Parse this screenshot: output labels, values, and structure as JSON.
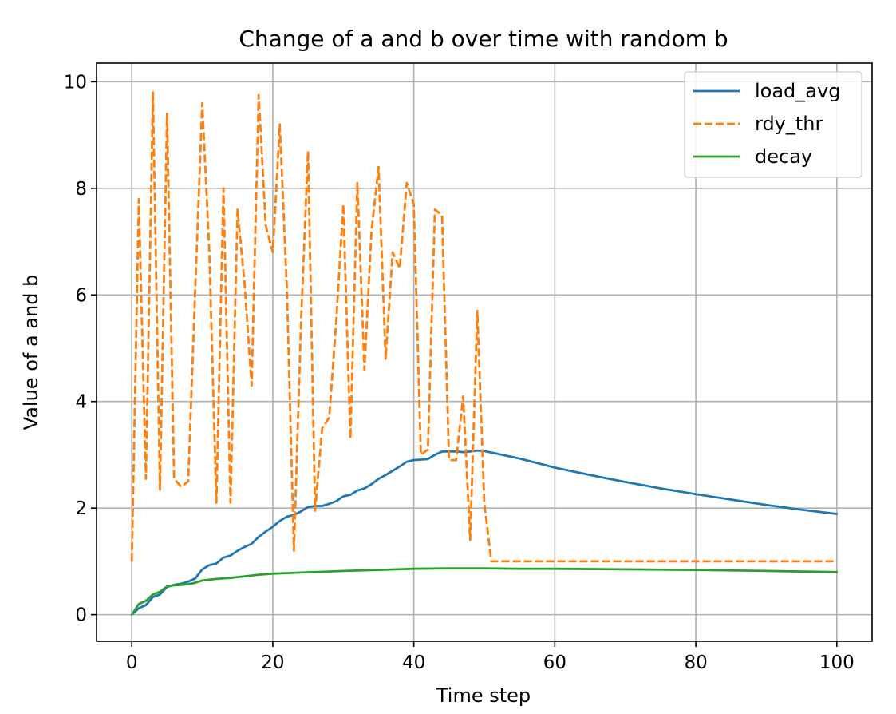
{
  "chart_data": {
    "type": "line",
    "title": "Change of a and b over time with random b",
    "xlabel": "Time step",
    "ylabel": "Value of a and b",
    "xlim": [
      -5,
      105
    ],
    "ylim": [
      -0.5,
      10.35
    ],
    "xticks": [
      0,
      20,
      40,
      60,
      80,
      100
    ],
    "yticks": [
      0,
      2,
      4,
      6,
      8,
      10
    ],
    "grid": true,
    "legend_position": "top-right",
    "series": [
      {
        "name": "load_avg",
        "color": "#1f77b4",
        "style": "solid",
        "x": [
          0,
          1,
          2,
          3,
          4,
          5,
          6,
          7,
          8,
          9,
          10,
          11,
          12,
          13,
          14,
          15,
          16,
          17,
          18,
          19,
          20,
          21,
          22,
          23,
          24,
          25,
          26,
          27,
          28,
          29,
          30,
          31,
          32,
          33,
          34,
          35,
          36,
          37,
          38,
          39,
          40,
          41,
          42,
          43,
          44,
          45,
          46,
          47,
          48,
          49,
          50,
          55,
          60,
          65,
          70,
          75,
          80,
          85,
          90,
          95,
          100
        ],
        "y": [
          0.0,
          0.12,
          0.18,
          0.33,
          0.38,
          0.52,
          0.56,
          0.58,
          0.62,
          0.68,
          0.85,
          0.93,
          0.96,
          1.07,
          1.11,
          1.2,
          1.27,
          1.33,
          1.46,
          1.56,
          1.65,
          1.76,
          1.84,
          1.87,
          1.94,
          2.02,
          2.04,
          2.04,
          2.08,
          2.13,
          2.22,
          2.25,
          2.33,
          2.37,
          2.45,
          2.55,
          2.62,
          2.7,
          2.78,
          2.87,
          2.9,
          2.91,
          2.92,
          3.0,
          3.06,
          3.06,
          3.06,
          3.05,
          3.06,
          3.08,
          3.07,
          2.93,
          2.76,
          2.62,
          2.49,
          2.37,
          2.26,
          2.16,
          2.06,
          1.97,
          1.89
        ]
      },
      {
        "name": "rdy_thr",
        "color": "#ff7f0e",
        "style": "dashed",
        "x": [
          0,
          1,
          2,
          3,
          4,
          5,
          6,
          7,
          8,
          9,
          10,
          11,
          12,
          13,
          14,
          15,
          16,
          17,
          18,
          19,
          20,
          21,
          22,
          23,
          24,
          25,
          26,
          27,
          28,
          29,
          30,
          31,
          32,
          33,
          34,
          35,
          36,
          37,
          38,
          39,
          40,
          41,
          42,
          43,
          44,
          45,
          46,
          47,
          48,
          49,
          50,
          51,
          100
        ],
        "y": [
          1.0,
          7.8,
          2.55,
          9.8,
          2.35,
          9.4,
          2.55,
          2.4,
          2.5,
          6.1,
          9.6,
          6.8,
          2.1,
          8.0,
          2.1,
          7.6,
          6.2,
          4.3,
          9.75,
          7.3,
          6.8,
          9.2,
          6.1,
          1.2,
          5.5,
          8.7,
          1.95,
          3.5,
          3.7,
          5.5,
          7.7,
          3.3,
          8.1,
          4.6,
          7.2,
          8.4,
          4.8,
          6.8,
          6.5,
          8.1,
          7.7,
          3.0,
          3.1,
          7.6,
          7.5,
          2.9,
          2.9,
          4.1,
          1.4,
          5.7,
          2.1,
          1.0,
          1.0
        ]
      },
      {
        "name": "decay",
        "color": "#2ca02c",
        "style": "solid",
        "x": [
          0,
          1,
          2,
          3,
          4,
          5,
          6,
          7,
          8,
          9,
          10,
          12,
          14,
          16,
          18,
          20,
          22,
          24,
          26,
          28,
          30,
          35,
          40,
          45,
          50,
          55,
          60,
          70,
          80,
          90,
          100
        ],
        "y": [
          0.0,
          0.2,
          0.26,
          0.38,
          0.43,
          0.53,
          0.55,
          0.56,
          0.57,
          0.6,
          0.64,
          0.67,
          0.69,
          0.72,
          0.75,
          0.77,
          0.78,
          0.79,
          0.8,
          0.81,
          0.82,
          0.84,
          0.86,
          0.87,
          0.87,
          0.86,
          0.86,
          0.85,
          0.84,
          0.82,
          0.8
        ]
      }
    ]
  }
}
